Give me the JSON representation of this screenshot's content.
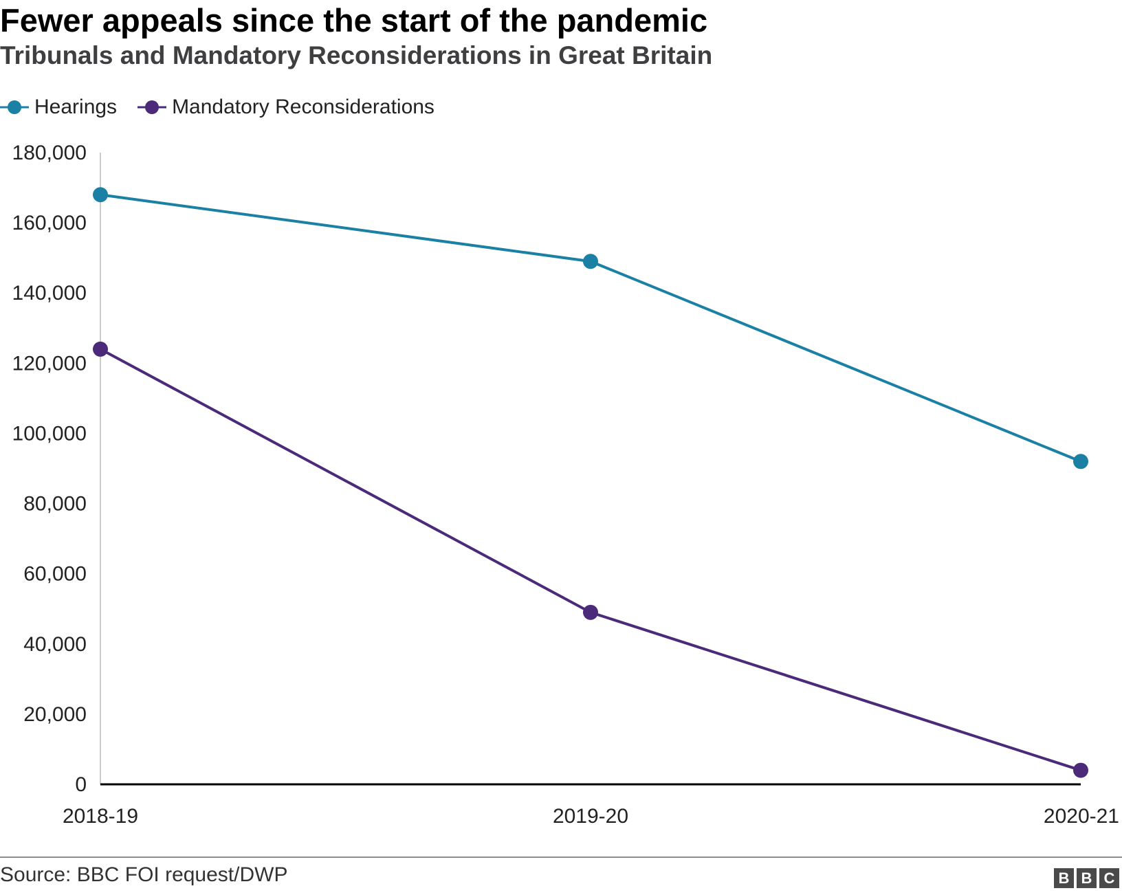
{
  "title": "Fewer appeals since the start of the pandemic",
  "subtitle": "Tribunals and Mandatory Reconsiderations in Great Britain",
  "source": "Source: BBC FOI request/DWP",
  "logo": [
    "B",
    "B",
    "C"
  ],
  "chart_data": {
    "type": "line",
    "title": "Fewer appeals since the start of the pandemic",
    "subtitle": "Tribunals and Mandatory Reconsiderations in Great Britain",
    "categories": [
      "2018-19",
      "2019-20",
      "2020-21"
    ],
    "ylim": [
      0,
      180000
    ],
    "yticks": [
      0,
      20000,
      40000,
      60000,
      80000,
      100000,
      120000,
      140000,
      160000,
      180000
    ],
    "ytick_labels": [
      "0",
      "20,000",
      "40,000",
      "60,000",
      "80,000",
      "100,000",
      "120,000",
      "140,000",
      "160,000",
      "180,000"
    ],
    "grid": false,
    "legend_position": "top-left",
    "series": [
      {
        "name": "Hearings",
        "color": "#1a80a4",
        "values": [
          168000,
          149000,
          92000
        ]
      },
      {
        "name": "Mandatory Reconsiderations",
        "color": "#4b2a7a",
        "values": [
          124000,
          49000,
          4000
        ]
      }
    ]
  }
}
